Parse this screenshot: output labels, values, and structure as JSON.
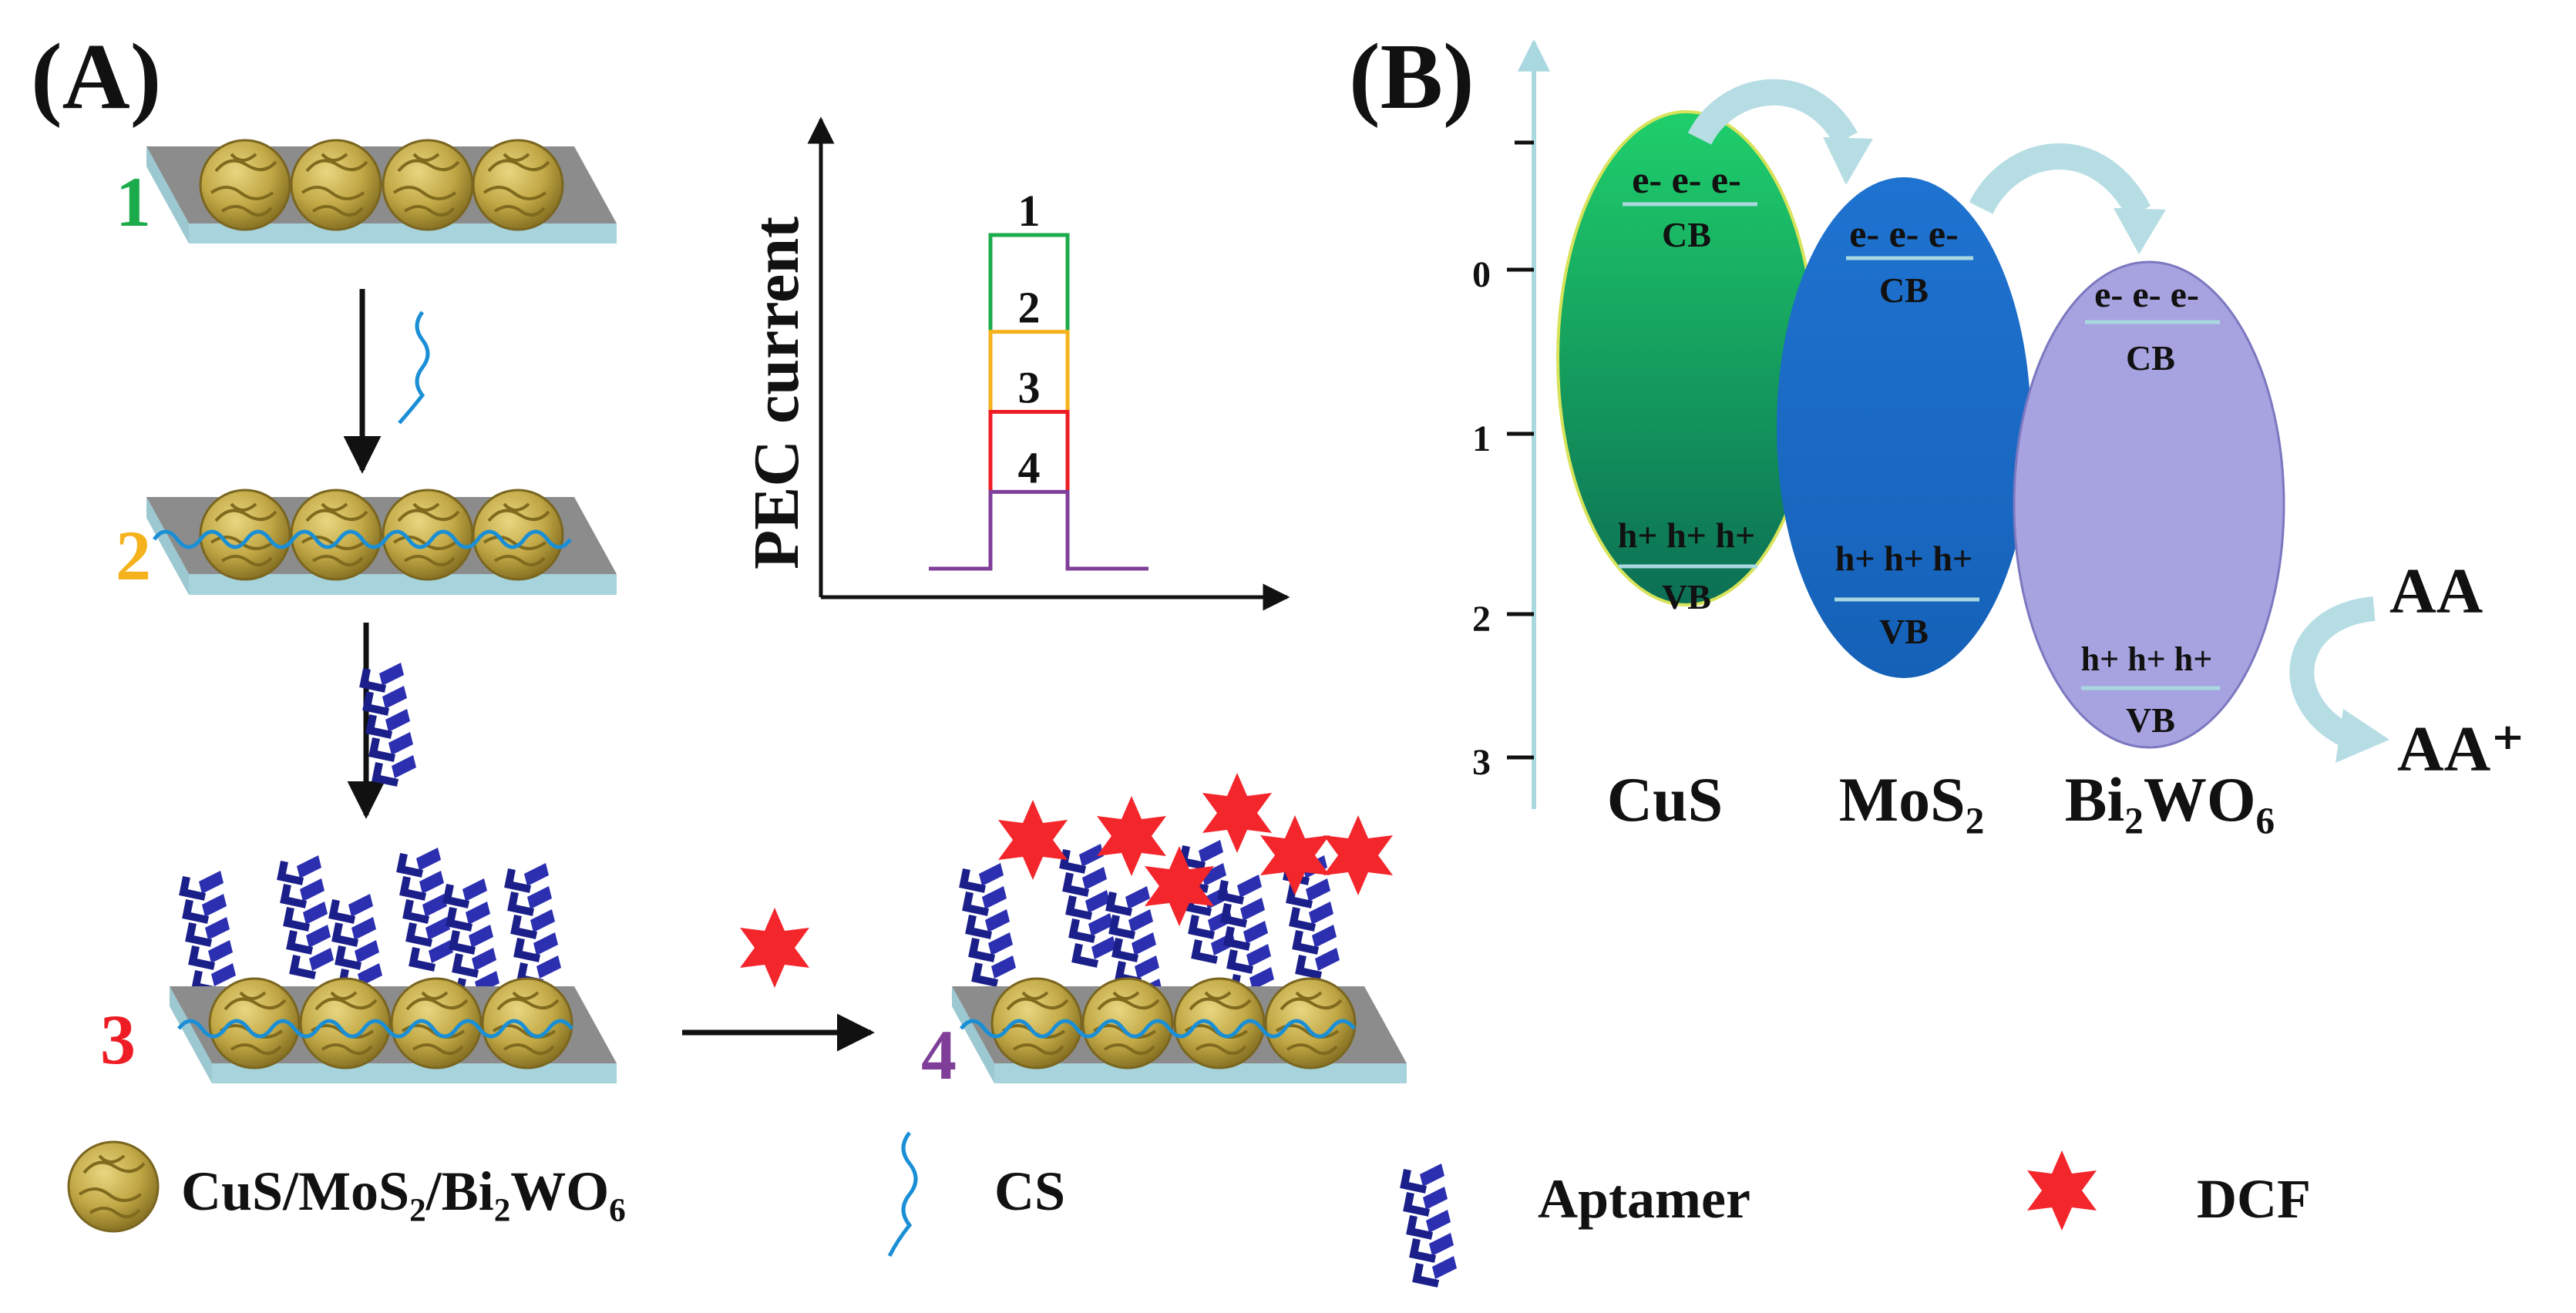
{
  "panel_a": {
    "label": "(A)",
    "step_labels": [
      "1",
      "2",
      "3",
      "4"
    ],
    "step_colors": [
      "#1bab4b",
      "#f5b21c",
      "#ee1c24",
      "#7f3f98"
    ],
    "graph": {
      "ylabel": "PEC current",
      "curve_labels": [
        "1",
        "2",
        "3",
        "4"
      ],
      "curve_colors": [
        "#1bab4b",
        "#f5b21c",
        "#ee1c24",
        "#7f3f98"
      ],
      "relative_levels": [
        1.0,
        0.71,
        0.47,
        0.23
      ]
    }
  },
  "legend": {
    "composite": "CuS/MoS₂/Bi₂WO₆",
    "cs": "CS",
    "aptamer": "Aptamer",
    "dcf": "DCF"
  },
  "panel_b": {
    "label": "(B)",
    "axis_ticks": [
      "0",
      "1",
      "2",
      "3"
    ],
    "materials": [
      {
        "name": "CuS",
        "cb": "CB",
        "vb": "VB",
        "electrons": "e- e- e-",
        "holes": "h+ h+ h+",
        "color": "#1aa86a"
      },
      {
        "name": "MoS₂",
        "cb": "CB",
        "vb": "VB",
        "electrons": "e- e- e-",
        "holes": "h+ h+ h+",
        "color": "#1e6fc4"
      },
      {
        "name": "Bi₂WO₆",
        "cb": "CB",
        "vb": "VB",
        "electrons": "e- e- e-",
        "holes": "h+ h+ h+",
        "color": "#a7a3e0"
      }
    ],
    "donor": "AA",
    "donor_oxidized": "AA⁺"
  },
  "colors": {
    "substrate_top": "#8c8c8c",
    "substrate_side": "#a6d3dc",
    "nanoparticle": "#c2a846",
    "cs_strand": "#1a8fd6",
    "aptamer": "#2b2fb0",
    "dcf": "#f3262c",
    "arrow": "#111111",
    "axis_b": "#a9d8e0",
    "transfer_arrow": "#b6dde4"
  }
}
